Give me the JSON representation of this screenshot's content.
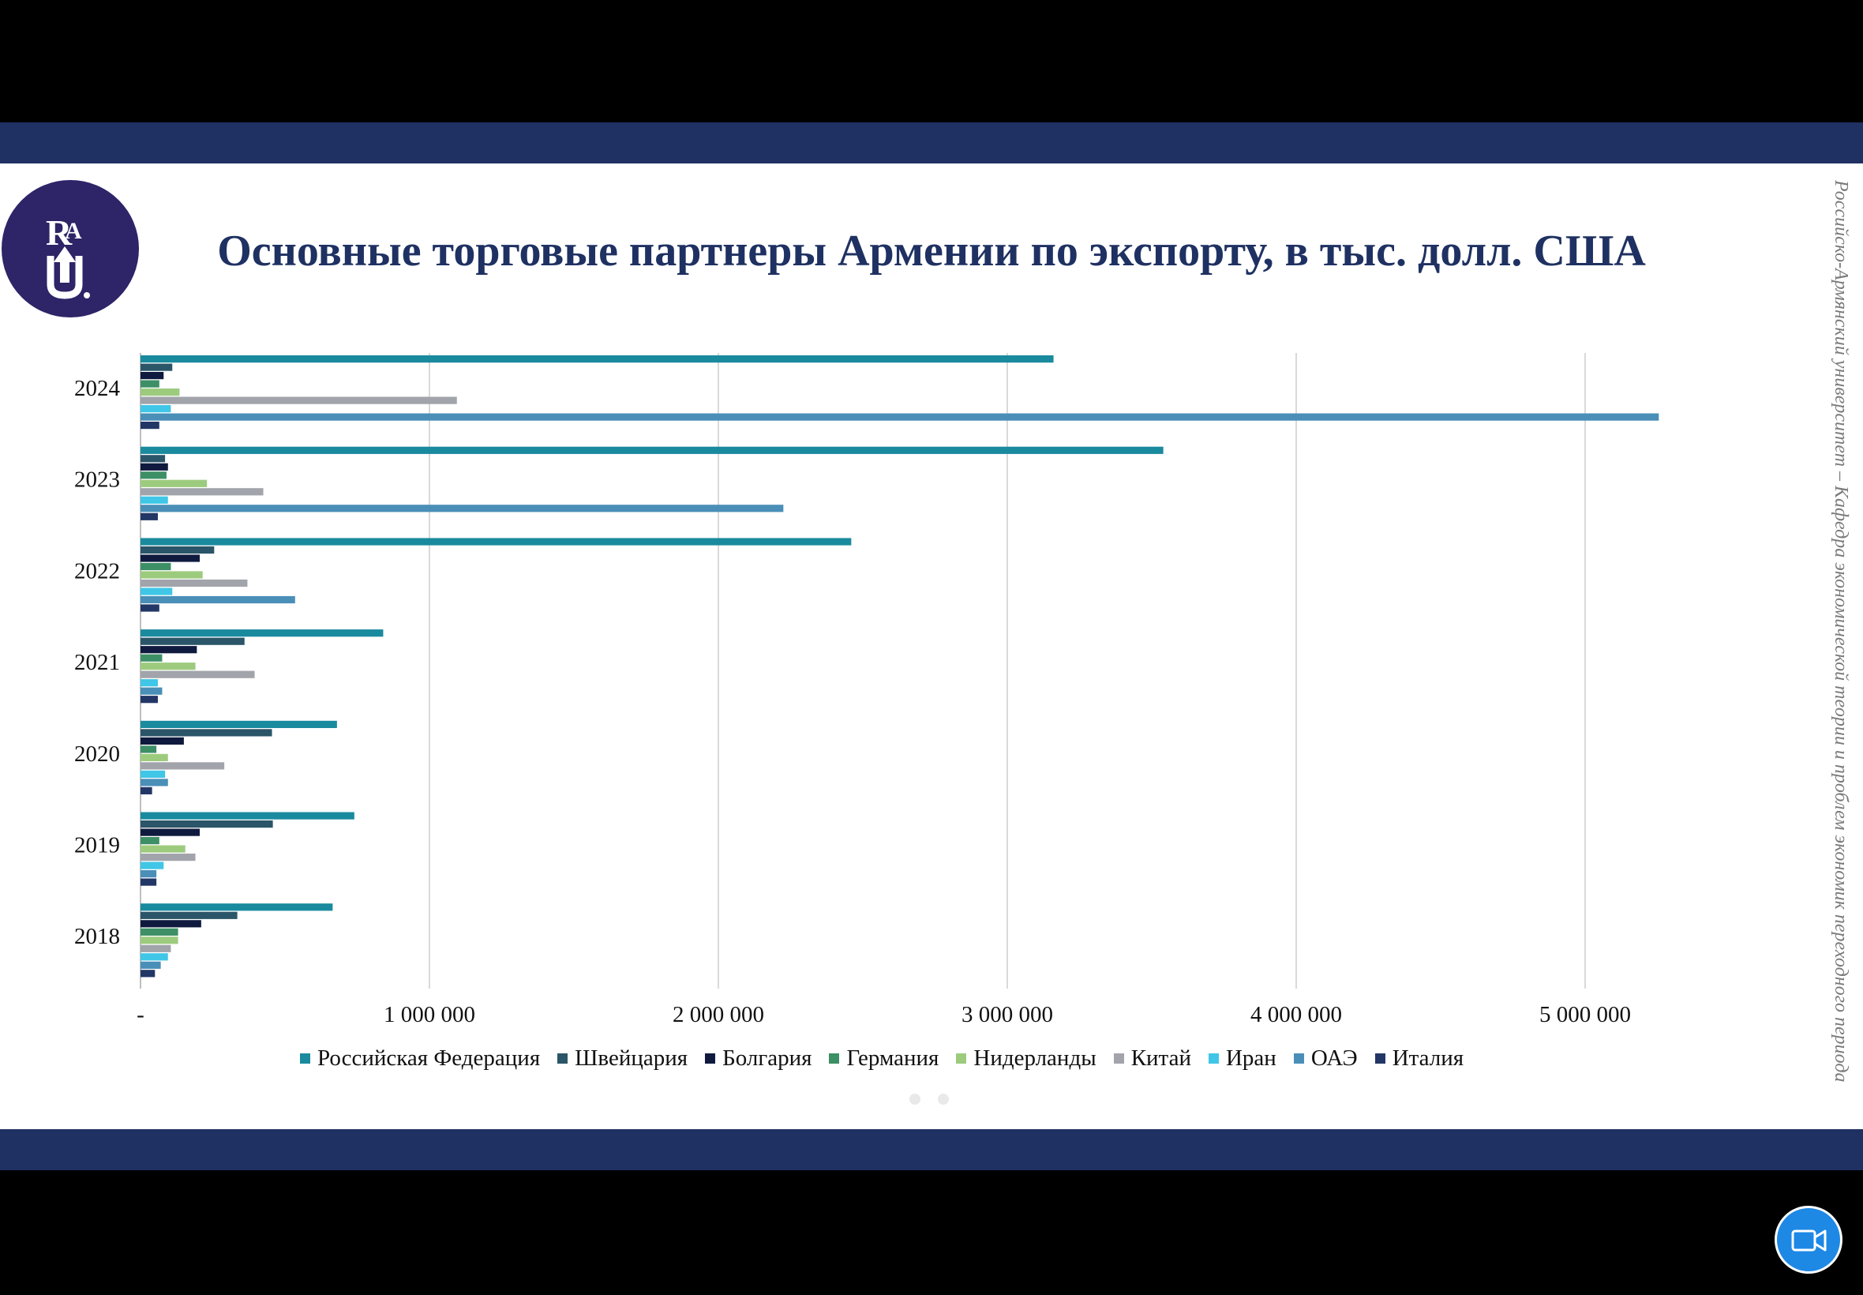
{
  "slide": {
    "title": "Основные торговые партнеры Армении по экспорту, в тыс. долл. США",
    "side_text": "Российско-Армянский университет – Кафедра экономической теории и проблем экономик переходного периода",
    "logo_letters": "RAU",
    "logo_icon": "rau-university-logo-icon"
  },
  "colors": {
    "band": "#1f3162",
    "title": "#1f3162",
    "logo_bg": "#2e2468"
  },
  "chart_data": {
    "type": "bar",
    "orientation": "horizontal",
    "categories": [
      "2024",
      "2023",
      "2022",
      "2021",
      "2020",
      "2019",
      "2018"
    ],
    "x_ticks": [
      "-",
      "1 000 000",
      "2 000 000",
      "3 000 000",
      "4 000 000",
      "5 000 000"
    ],
    "xlim": [
      0,
      5500000
    ],
    "grid": true,
    "legend_position": "bottom",
    "series": [
      {
        "name": "Российская Федерация",
        "color": "#1a8a9e",
        "values": [
          3160000,
          3540000,
          2460000,
          840000,
          680000,
          740000,
          665000
        ]
      },
      {
        "name": "Швейцария",
        "color": "#2b5568",
        "values": [
          110000,
          85000,
          255000,
          360000,
          455000,
          458000,
          335000
        ]
      },
      {
        "name": "Болгария",
        "color": "#0f1a3e",
        "values": [
          80000,
          95000,
          205000,
          195000,
          150000,
          205000,
          210000
        ]
      },
      {
        "name": "Германия",
        "color": "#3d8f66",
        "values": [
          65000,
          90000,
          105000,
          75000,
          55000,
          65000,
          130000
        ]
      },
      {
        "name": "Нидерланды",
        "color": "#9dcb7e",
        "values": [
          135000,
          230000,
          215000,
          190000,
          95000,
          155000,
          130000
        ]
      },
      {
        "name": "Китай",
        "color": "#a1a4aa",
        "values": [
          1095000,
          425000,
          370000,
          395000,
          290000,
          190000,
          105000
        ]
      },
      {
        "name": "Иран",
        "color": "#40c6e6",
        "values": [
          105000,
          95000,
          110000,
          60000,
          85000,
          80000,
          95000
        ]
      },
      {
        "name": "ОАЭ",
        "color": "#4a8fb8",
        "values": [
          5255000,
          2225000,
          535000,
          75000,
          95000,
          55000,
          70000
        ]
      },
      {
        "name": "Италия",
        "color": "#223766",
        "values": [
          65000,
          60000,
          65000,
          60000,
          40000,
          55000,
          50000
        ]
      }
    ]
  },
  "controls": {
    "camera_icon": "video-camera-icon"
  }
}
